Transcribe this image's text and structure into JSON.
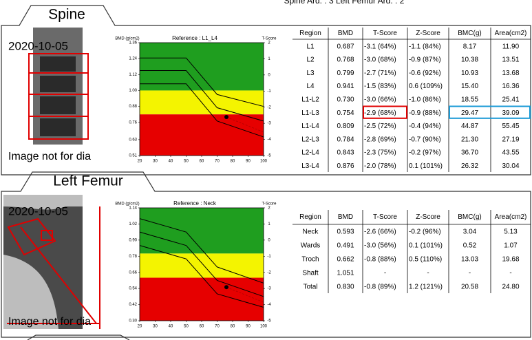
{
  "header": {
    "text": "Spine Ard. : 3    Left Femur Ard. : 2"
  },
  "sections": [
    {
      "title": "Spine",
      "date": "2020-10-05",
      "image_note": "Image not for dia",
      "chart": {
        "type": "line",
        "y_label": "BMD (g/cm2)",
        "reference": "Reference : L1_L4",
        "y2_label": "T-Score",
        "xlim": [
          20,
          100
        ],
        "xticks": [
          20,
          30,
          40,
          50,
          60,
          70,
          80,
          90,
          100
        ],
        "ylim": [
          0.51,
          1.36
        ],
        "yticks": [
          1.36,
          1.24,
          1.12,
          {
            "value": 1.0,
            "label": "1.00"
          },
          0.88,
          0.76,
          0.63,
          0.51
        ],
        "y2lim": [
          -5,
          2
        ],
        "y2ticks": [
          2,
          1,
          0,
          -1,
          -2,
          -3,
          -4,
          -5
        ],
        "zones": [
          {
            "from": 1.0,
            "to": 1.36,
            "color": "#1f9e1f"
          },
          {
            "from": 0.82,
            "to": 1.0,
            "color": "#f4f400"
          },
          {
            "from": 0.51,
            "to": 0.82,
            "color": "#e60000"
          }
        ],
        "x": [
          20,
          50,
          70,
          100
        ],
        "series": [
          {
            "color": "#000000",
            "values": [
              1.245,
              1.245,
              0.97,
              0.88
            ]
          },
          {
            "color": "#000000",
            "values": [
              1.15,
              1.15,
              0.87,
              0.77
            ]
          },
          {
            "color": "#000000",
            "values": [
              1.05,
              1.05,
              0.77,
              0.65
            ]
          }
        ],
        "patient": {
          "x": 76,
          "y": 0.8
        }
      },
      "table": {
        "header": [
          "Region",
          "BMD",
          "T-Score",
          "Z-Score",
          "BMC(g)",
          "Area(cm2)"
        ],
        "rows": [
          [
            "L1",
            "0.687",
            "-3.1 (64%)",
            "-1.1 (84%)",
            "8.17",
            "11.90"
          ],
          [
            "L2",
            "0.768",
            "-3.0 (68%)",
            "-0.9 (87%)",
            "10.38",
            "13.51"
          ],
          [
            "L3",
            "0.799",
            "-2.7 (71%)",
            "-0.6 (92%)",
            "10.93",
            "13.68"
          ],
          [
            "L4",
            "0.941",
            "-1.5 (83%)",
            "0.6 (109%)",
            "15.40",
            "16.36"
          ],
          [
            "L1-L2",
            "0.730",
            "-3.0 (66%)",
            "-1.0 (86%)",
            "18.55",
            "25.41"
          ],
          [
            "L1-L3",
            "0.754",
            "-2.9 (68%)",
            "-0.9 (88%)",
            "29.47",
            "39.09"
          ],
          [
            "L1-L4",
            "0.809",
            "-2.5 (72%)",
            "-0.4 (94%)",
            "44.87",
            "55.45"
          ],
          [
            "L2-L3",
            "0.784",
            "-2.8 (69%)",
            "-0.7 (90%)",
            "21.30",
            "27.19"
          ],
          [
            "L2-L4",
            "0.843",
            "-2.3 (75%)",
            "-0.2 (97%)",
            "36.70",
            "43.55"
          ],
          [
            "L3-L4",
            "0.876",
            "-2.0 (78%)",
            "0.1 (101%)",
            "26.32",
            "30.04"
          ]
        ],
        "highlights": [
          {
            "row": 5,
            "cols": [
              2
            ],
            "color": "#e00000"
          },
          {
            "row": 5,
            "cols": [
              4,
              5
            ],
            "color": "#1a9ad6"
          }
        ]
      }
    },
    {
      "title": "Left Femur",
      "date": "2020-10-05",
      "image_note": "Image not for dia",
      "chart": {
        "type": "line",
        "y_label": "BMD (g/cm2)",
        "reference": "Reference : Neck",
        "y2_label": "T-Score",
        "xlim": [
          20,
          100
        ],
        "xticks": [
          20,
          30,
          40,
          50,
          60,
          70,
          80,
          90,
          100
        ],
        "ylim": [
          0.3,
          1.14
        ],
        "yticks": [
          1.14,
          1.02,
          {
            "value": 0.9,
            "label": "0.90"
          },
          0.78,
          0.66,
          0.54,
          0.42,
          {
            "value": 0.3,
            "label": "0.30"
          }
        ],
        "y2lim": [
          -5,
          2
        ],
        "y2ticks": [
          2,
          1,
          0,
          -1,
          -2,
          -3,
          -4,
          -5
        ],
        "zones": [
          {
            "from": 0.8,
            "to": 1.14,
            "color": "#1f9e1f"
          },
          {
            "from": 0.62,
            "to": 0.8,
            "color": "#f4f400"
          },
          {
            "from": 0.3,
            "to": 0.62,
            "color": "#e60000"
          }
        ],
        "x": [
          20,
          50,
          70,
          100
        ],
        "series": [
          {
            "color": "#000000",
            "values": [
              1.06,
              0.96,
              0.7,
              0.58
            ]
          },
          {
            "color": "#000000",
            "values": [
              0.96,
              0.86,
              0.6,
              0.48
            ]
          },
          {
            "color": "#000000",
            "values": [
              0.86,
              0.76,
              0.5,
              0.4
            ]
          }
        ],
        "patient": {
          "x": 76,
          "y": 0.55
        }
      },
      "table": {
        "header": [
          "Region",
          "BMD",
          "T-Score",
          "Z-Score",
          "BMC(g)",
          "Area(cm2)"
        ],
        "rows": [
          [
            "Neck",
            "0.593",
            "-2.6 (66%)",
            "-0.2 (96%)",
            "3.04",
            "5.13"
          ],
          [
            "Wards",
            "0.491",
            "-3.0 (56%)",
            "0.1 (101%)",
            "0.52",
            "1.07"
          ],
          [
            "Troch",
            "0.662",
            "-0.8 (88%)",
            "0.5 (110%)",
            "13.03",
            "19.68"
          ],
          [
            "Shaft",
            "1.051",
            "-",
            "-",
            "-",
            "-"
          ],
          [
            "Total",
            "0.830",
            "-0.8 (89%)",
            "1.2 (121%)",
            "20.58",
            "24.80"
          ]
        ],
        "highlights": []
      }
    }
  ]
}
